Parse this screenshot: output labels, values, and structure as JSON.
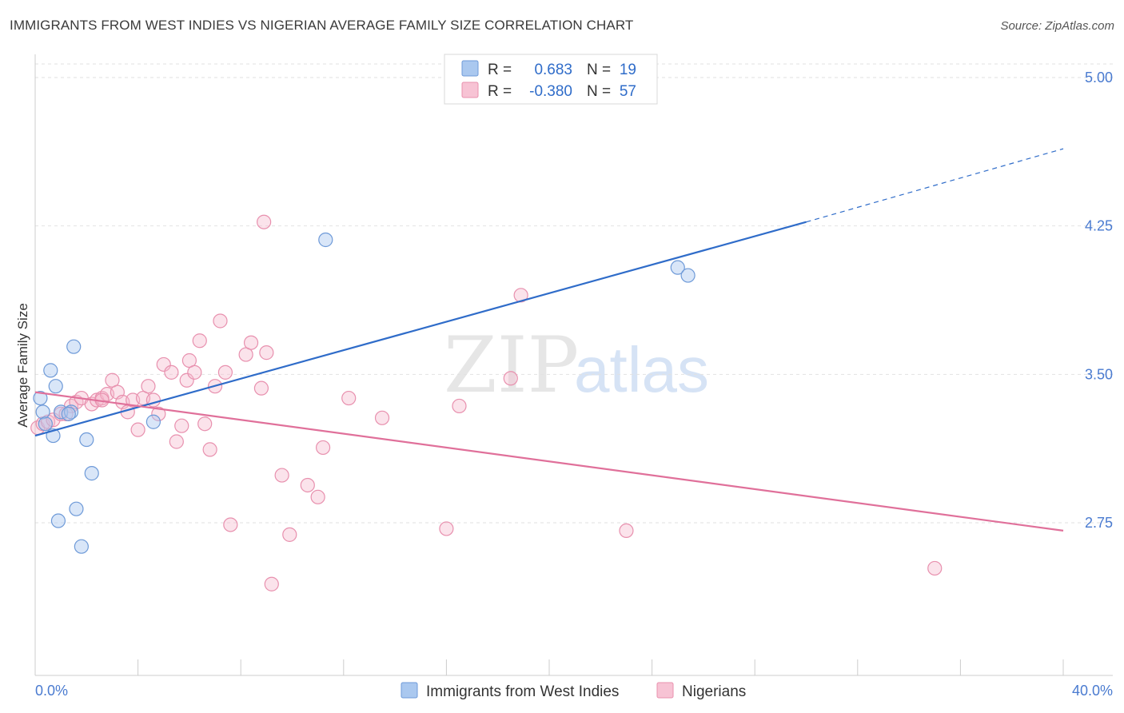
{
  "title": "IMMIGRANTS FROM WEST INDIES VS NIGERIAN AVERAGE FAMILY SIZE CORRELATION CHART",
  "source": "Source: ZipAtlas.com",
  "watermark": {
    "zip": "ZIP",
    "atlas": "atlas"
  },
  "colors": {
    "blue": "#2f6cc9",
    "blue_fill": "#aac8ef",
    "pink": "#e0709a",
    "pink_fill": "#f5b8cc"
  },
  "legend": {
    "rows": [
      {
        "r_label": "R =",
        "r_value": "0.683",
        "n_label": "N =",
        "n_value": "19"
      },
      {
        "r_label": "R =",
        "r_value": "-0.380",
        "n_label": "N =",
        "n_value": "57"
      }
    ]
  },
  "chart_data": {
    "type": "scatter",
    "xlabel": "",
    "ylabel": "Average Family Size",
    "xlim": [
      0,
      40
    ],
    "ylim": [
      2.0,
      5.2
    ],
    "x_tick_labels": [
      "0.0%",
      "40.0%"
    ],
    "y_ticks": [
      2.75,
      3.5,
      4.25,
      5.0
    ],
    "y_tick_labels": [
      "2.75",
      "3.50",
      "4.25",
      "5.00"
    ],
    "grid": true,
    "series": [
      {
        "name": "Immigrants from West Indies",
        "color": "blue",
        "points": [
          [
            0.2,
            3.38
          ],
          [
            0.3,
            3.31
          ],
          [
            0.4,
            3.25
          ],
          [
            0.6,
            3.52
          ],
          [
            0.7,
            3.19
          ],
          [
            0.8,
            3.44
          ],
          [
            0.9,
            2.76
          ],
          [
            1.0,
            3.31
          ],
          [
            1.4,
            3.31
          ],
          [
            1.5,
            3.64
          ],
          [
            1.6,
            2.82
          ],
          [
            1.8,
            2.63
          ],
          [
            2.0,
            3.17
          ],
          [
            2.2,
            3.0
          ],
          [
            4.6,
            3.26
          ],
          [
            11.3,
            4.18
          ],
          [
            25.0,
            4.04
          ],
          [
            25.4,
            4.0
          ],
          [
            1.3,
            3.3
          ]
        ],
        "trend": {
          "x0": 0,
          "y0": 3.19,
          "x1": 30,
          "y1": 4.27,
          "dash_x1": 40,
          "dash_y1": 4.64
        }
      },
      {
        "name": "Nigerians",
        "color": "pink",
        "points": [
          [
            0.1,
            3.23
          ],
          [
            0.3,
            3.25
          ],
          [
            0.5,
            3.26
          ],
          [
            0.7,
            3.27
          ],
          [
            1.0,
            3.3
          ],
          [
            1.4,
            3.34
          ],
          [
            1.6,
            3.36
          ],
          [
            1.8,
            3.38
          ],
          [
            2.2,
            3.35
          ],
          [
            2.4,
            3.37
          ],
          [
            2.6,
            3.38
          ],
          [
            2.8,
            3.4
          ],
          [
            3.0,
            3.47
          ],
          [
            3.2,
            3.41
          ],
          [
            3.4,
            3.36
          ],
          [
            3.6,
            3.31
          ],
          [
            3.8,
            3.37
          ],
          [
            4.0,
            3.22
          ],
          [
            4.2,
            3.38
          ],
          [
            4.4,
            3.44
          ],
          [
            4.6,
            3.37
          ],
          [
            4.8,
            3.3
          ],
          [
            5.0,
            3.55
          ],
          [
            5.3,
            3.51
          ],
          [
            5.5,
            3.16
          ],
          [
            5.7,
            3.24
          ],
          [
            5.9,
            3.47
          ],
          [
            6.0,
            3.57
          ],
          [
            6.2,
            3.51
          ],
          [
            6.4,
            3.67
          ],
          [
            6.6,
            3.25
          ],
          [
            6.8,
            3.12
          ],
          [
            7.0,
            3.44
          ],
          [
            7.2,
            3.77
          ],
          [
            7.4,
            3.51
          ],
          [
            7.6,
            2.74
          ],
          [
            8.2,
            3.6
          ],
          [
            8.4,
            3.66
          ],
          [
            8.8,
            3.43
          ],
          [
            8.9,
            4.27
          ],
          [
            9.0,
            3.61
          ],
          [
            9.2,
            2.44
          ],
          [
            9.6,
            2.99
          ],
          [
            9.9,
            2.69
          ],
          [
            10.6,
            2.94
          ],
          [
            11.0,
            2.88
          ],
          [
            11.2,
            3.13
          ],
          [
            12.2,
            3.38
          ],
          [
            13.5,
            3.28
          ],
          [
            16.0,
            2.72
          ],
          [
            16.5,
            3.34
          ],
          [
            18.5,
            3.48
          ],
          [
            18.9,
            3.9
          ],
          [
            23.0,
            2.71
          ],
          [
            35.0,
            2.52
          ],
          [
            1.2,
            3.3
          ],
          [
            2.6,
            3.37
          ]
        ],
        "trend": {
          "x0": 0,
          "y0": 3.41,
          "x1": 40,
          "y1": 2.71
        }
      }
    ]
  }
}
